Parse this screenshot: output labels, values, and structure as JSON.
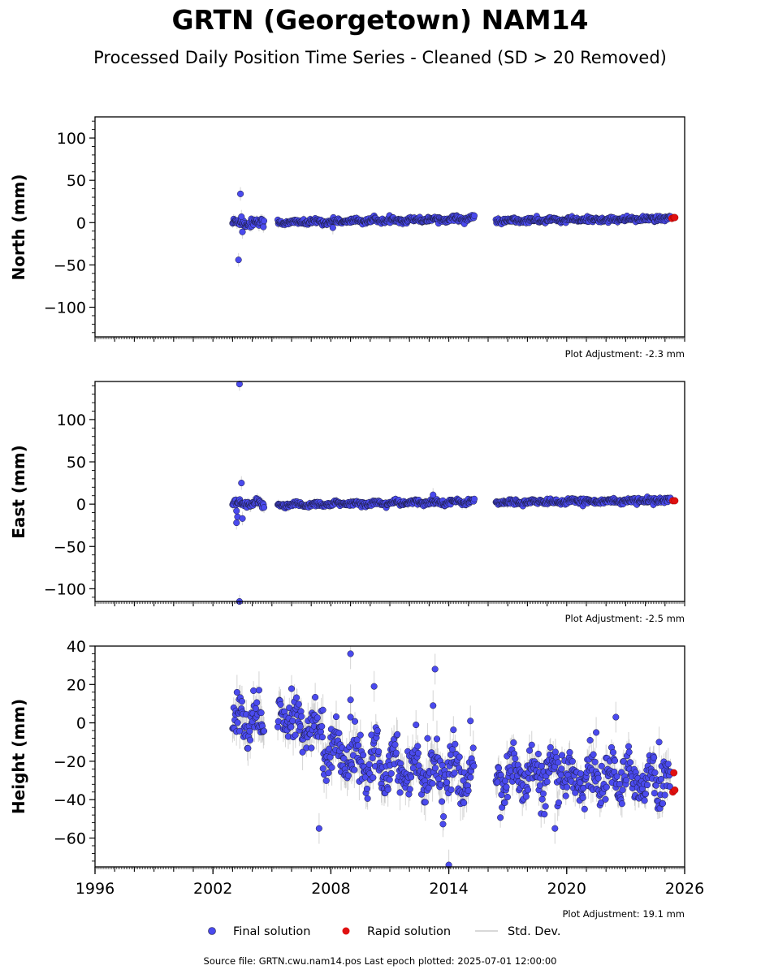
{
  "figure": {
    "title": "GRTN (Georgetown) NAM14",
    "subtitle": "Processed Daily Position Time Series - Cleaned (SD > 20 Removed)",
    "source_note": "Source file: GRTN.cwu.nam14.pos  Last epoch plotted: 2025-07-01 12:00:00"
  },
  "legend": {
    "final_label": "Final solution",
    "rapid_label": "Rapid solution",
    "std_label": "Std. Dev."
  },
  "colors": {
    "final": "#4a4aee",
    "final_edge": "#1a1a3a",
    "rapid": "#e01010",
    "std": "#b8b8b8"
  },
  "chart_data": [
    {
      "type": "scatter",
      "ylabel": "North (mm)",
      "adjustment": "Plot Adjustment: -2.3 mm",
      "xlim": [
        1996,
        2026
      ],
      "ylim": [
        -135,
        125
      ],
      "yticks": [
        -100,
        -50,
        0,
        50,
        100
      ],
      "ytick_labels": [
        "−100",
        "−50",
        "0",
        "50",
        "100"
      ],
      "xtick_labels_shown": false,
      "segments": [
        {
          "start": 2003.0,
          "end": 2004.6,
          "a": 0,
          "b": 0,
          "amp": 2.0,
          "noise": 2.5,
          "sd": 5
        },
        {
          "start": 2005.3,
          "end": 2015.3,
          "a": 0,
          "b": 0.5,
          "amp": 1.2,
          "noise": 1.5,
          "sd": 4
        },
        {
          "start": 2016.4,
          "end": 2025.3,
          "a": 2,
          "b": 0.3,
          "amp": 1.0,
          "noise": 1.5,
          "sd": 4
        }
      ],
      "outliers": [
        {
          "x": 2003.4,
          "y": 34
        },
        {
          "x": 2003.3,
          "y": -44
        },
        {
          "x": 2003.5,
          "y": -11
        },
        {
          "x": 2003.45,
          "y": 7
        },
        {
          "x": 2008.1,
          "y": -6
        }
      ],
      "rapid": [
        {
          "x": 2025.35,
          "y": 5
        },
        {
          "x": 2025.45,
          "y": 6
        },
        {
          "x": 2025.5,
          "y": 6
        }
      ]
    },
    {
      "type": "scatter",
      "ylabel": "East (mm)",
      "adjustment": "Plot Adjustment: -2.5 mm",
      "xlim": [
        1996,
        2026
      ],
      "ylim": [
        -115,
        145
      ],
      "yticks": [
        -100,
        -50,
        0,
        50,
        100
      ],
      "ytick_labels": [
        "−100",
        "−50",
        "0",
        "50",
        "100"
      ],
      "xtick_labels_shown": false,
      "segments": [
        {
          "start": 2003.0,
          "end": 2004.6,
          "a": 0,
          "b": 0,
          "amp": 2.0,
          "noise": 2.0,
          "sd": 5
        },
        {
          "start": 2005.3,
          "end": 2015.3,
          "a": -1,
          "b": 0.4,
          "amp": 1.2,
          "noise": 1.5,
          "sd": 4
        },
        {
          "start": 2016.4,
          "end": 2025.3,
          "a": 2,
          "b": 0.3,
          "amp": 1.0,
          "noise": 1.5,
          "sd": 4
        }
      ],
      "outliers": [
        {
          "x": 2003.35,
          "y": 142
        },
        {
          "x": 2003.45,
          "y": 25
        },
        {
          "x": 2003.2,
          "y": -22
        },
        {
          "x": 2003.25,
          "y": -15
        },
        {
          "x": 2003.2,
          "y": -8
        },
        {
          "x": 2003.5,
          "y": -17
        },
        {
          "x": 2003.35,
          "y": -115
        },
        {
          "x": 2013.2,
          "y": 11
        }
      ],
      "rapid": [
        {
          "x": 2025.4,
          "y": 4
        },
        {
          "x": 2025.5,
          "y": 4
        }
      ]
    },
    {
      "type": "scatter",
      "ylabel": "Height (mm)",
      "adjustment": "Plot Adjustment: 19.1 mm",
      "xlim": [
        1996,
        2026
      ],
      "ylim": [
        -75,
        40
      ],
      "yticks": [
        -60,
        -40,
        -20,
        0,
        20,
        40
      ],
      "ytick_labels": [
        "−60",
        "−40",
        "−20",
        "0",
        "20",
        "40"
      ],
      "xticks": [
        1996,
        2002,
        2008,
        2014,
        2020,
        2026
      ],
      "xtick_labels": [
        "1996",
        "2002",
        "2008",
        "2014",
        "2020",
        "2026"
      ],
      "xtick_labels_shown": true,
      "segments": [
        {
          "start": 2003.0,
          "end": 2004.6,
          "a": 0,
          "b": 0,
          "amp": 6,
          "noise": 6,
          "sd": 7
        },
        {
          "start": 2005.3,
          "end": 2007.6,
          "a": 4,
          "b": -3.5,
          "amp": 5,
          "noise": 5,
          "sd": 7
        },
        {
          "start": 2007.6,
          "end": 2015.3,
          "a": -14,
          "b": -2.0,
          "amp": 8,
          "noise": 6,
          "sd": 7
        },
        {
          "start": 2016.4,
          "end": 2025.3,
          "a": -27,
          "b": -0.3,
          "amp": 6,
          "noise": 6,
          "sd": 6
        }
      ],
      "outliers": [
        {
          "x": 2009.0,
          "y": 36
        },
        {
          "x": 2010.2,
          "y": 19
        },
        {
          "x": 2009.0,
          "y": 12
        },
        {
          "x": 2009.0,
          "y": 3
        },
        {
          "x": 2013.3,
          "y": 28
        },
        {
          "x": 2013.2,
          "y": 9
        },
        {
          "x": 2015.1,
          "y": 1
        },
        {
          "x": 2007.4,
          "y": -55
        },
        {
          "x": 2014.0,
          "y": -74
        },
        {
          "x": 2022.5,
          "y": 3
        },
        {
          "x": 2021.5,
          "y": -5
        },
        {
          "x": 2024.7,
          "y": -10
        },
        {
          "x": 2019.4,
          "y": -55
        }
      ],
      "rapid": [
        {
          "x": 2025.45,
          "y": -26
        },
        {
          "x": 2025.4,
          "y": -36
        },
        {
          "x": 2025.5,
          "y": -35
        }
      ]
    }
  ]
}
